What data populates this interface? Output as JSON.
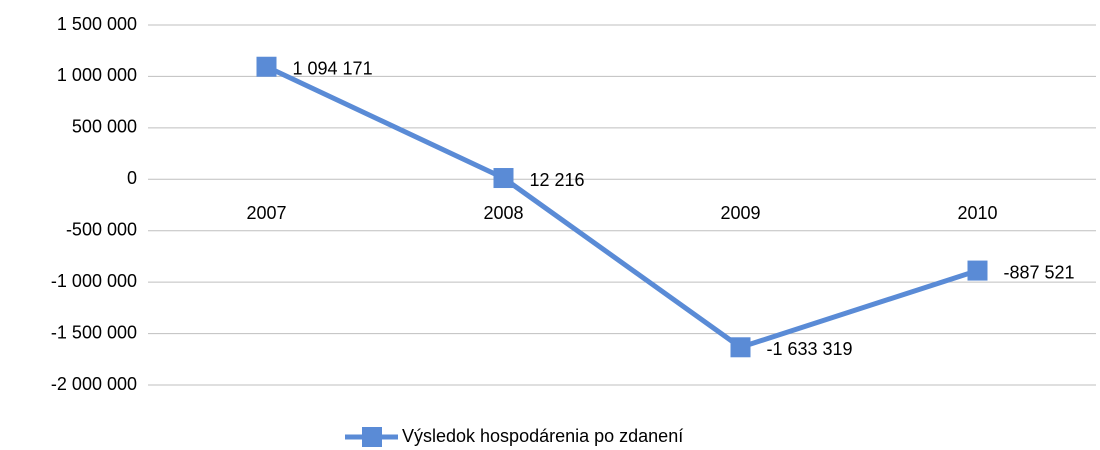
{
  "chart_data": {
    "type": "line",
    "categories": [
      "2007",
      "2008",
      "2009",
      "2010"
    ],
    "series": [
      {
        "name": "Výsledok hospodárenia po zdanení",
        "color": "#5a8bd6",
        "values": [
          1094171,
          12216,
          -1633319,
          -887521
        ],
        "value_labels": [
          "1 094 171",
          "12 216",
          "-1 633 319",
          "-887 521"
        ]
      }
    ],
    "ylim": [
      -2000000,
      1500000
    ],
    "yticks": [
      {
        "value": -2000000,
        "label": "-2 000 000"
      },
      {
        "value": -1500000,
        "label": "-1 500 000"
      },
      {
        "value": -1000000,
        "label": "-1 000 000"
      },
      {
        "value": -500000,
        "label": "-500 000"
      },
      0,
      {
        "value": 500000,
        "label": "500 000"
      },
      {
        "value": 1000000,
        "label": "1 000 000"
      },
      {
        "value": 1500000,
        "label": "1 500 000"
      }
    ],
    "grid": true,
    "legend": "bottom"
  }
}
